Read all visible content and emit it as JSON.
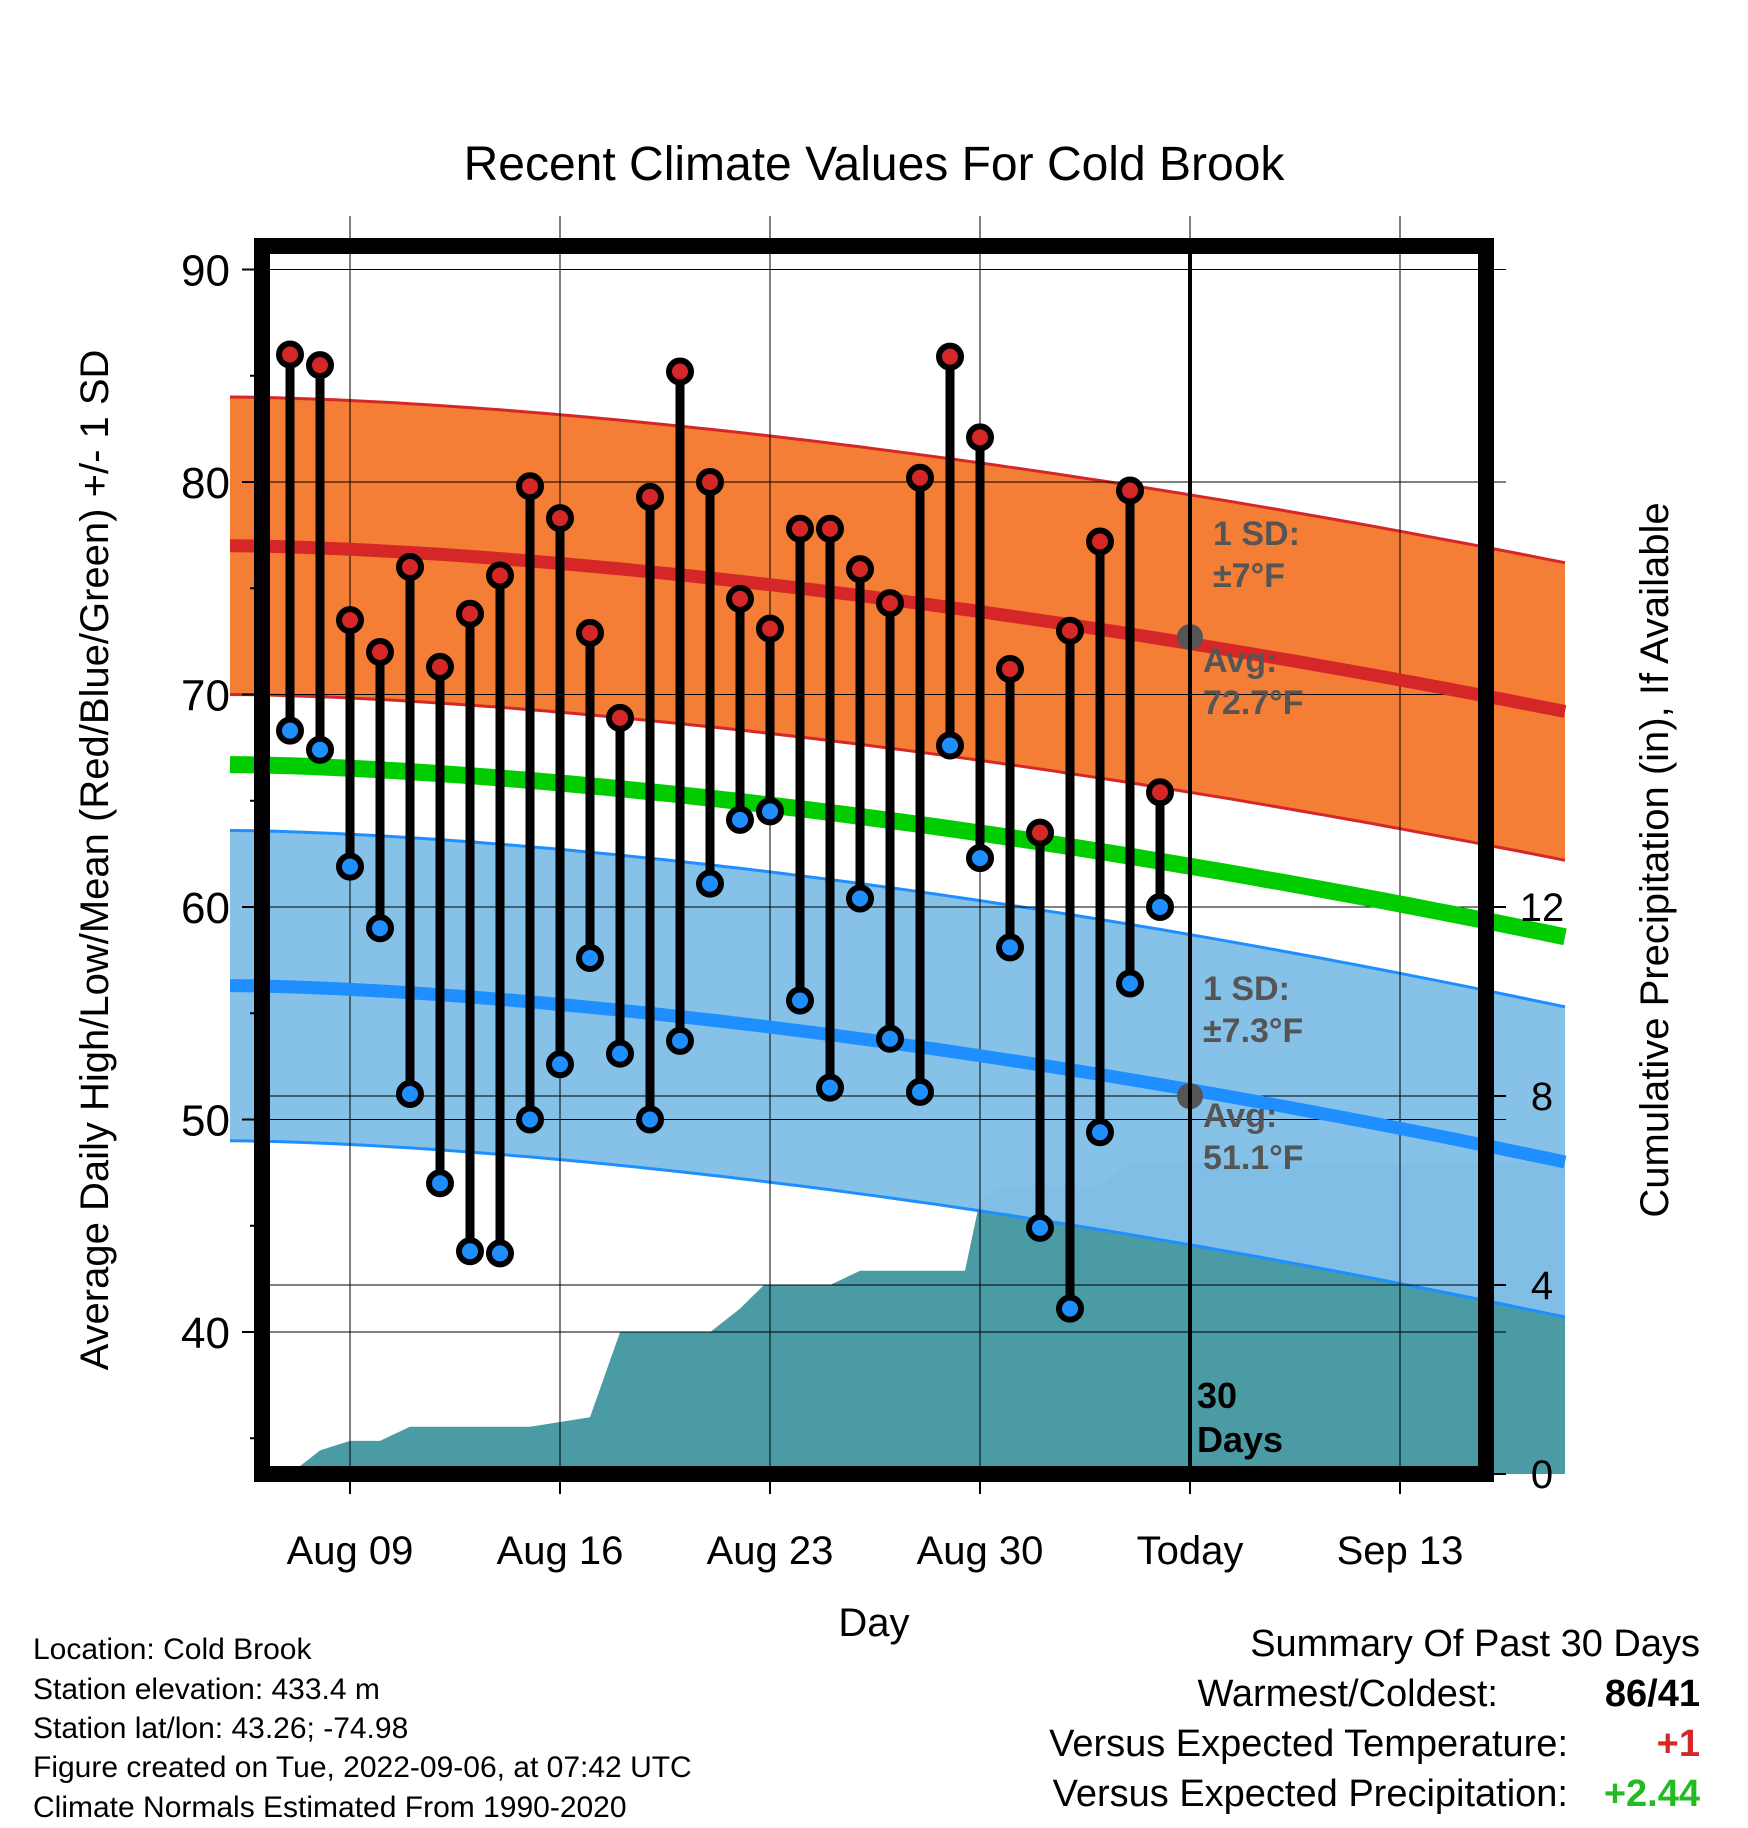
{
  "chart_data": {
    "type": "line",
    "title": "Recent Climate Values For Cold Brook",
    "xlabel": "Day",
    "ylabel": "Average Daily High/Low/Mean (Red/Blue/Green) +/- 1 SD",
    "y2label": "Cumulative Precipitation (in), If Available",
    "ylim": [
      33.1,
      91.5
    ],
    "y2lim": [
      0,
      18.8
    ],
    "yticks": [
      "40",
      "50",
      "60",
      "70",
      "80",
      "90"
    ],
    "y2ticks": [
      "0",
      "4",
      "8",
      "12"
    ],
    "xlim": [
      -4.0,
      40.5
    ],
    "xticks": [
      {
        "pos": 0,
        "label": "Aug 09"
      },
      {
        "pos": 7,
        "label": "Aug 16"
      },
      {
        "pos": 14,
        "label": "Aug 23"
      },
      {
        "pos": 21,
        "label": "Aug 30"
      },
      {
        "pos": 28,
        "label": "Today"
      },
      {
        "pos": 35,
        "label": "Sep 13"
      }
    ],
    "grid": true,
    "days": [
      "Aug 07",
      "Aug 08",
      "Aug 09",
      "Aug 10",
      "Aug 11",
      "Aug 12",
      "Aug 13",
      "Aug 14",
      "Aug 15",
      "Aug 16",
      "Aug 17",
      "Aug 18",
      "Aug 19",
      "Aug 20",
      "Aug 21",
      "Aug 22",
      "Aug 23",
      "Aug 24",
      "Aug 25",
      "Aug 26",
      "Aug 27",
      "Aug 28",
      "Aug 29",
      "Aug 30",
      "Aug 31",
      "Sep 01",
      "Sep 02",
      "Sep 03",
      "Sep 04",
      "Sep 05"
    ],
    "series": [
      {
        "name": "High",
        "color": "#d62728",
        "values": [
          86.0,
          85.5,
          73.5,
          72.0,
          76.0,
          71.3,
          73.8,
          75.6,
          79.8,
          78.3,
          72.9,
          68.9,
          79.3,
          85.2,
          80.0,
          74.5,
          73.1,
          77.8,
          77.8,
          75.9,
          74.3,
          80.2,
          85.9,
          82.1,
          71.2,
          63.5,
          73.0,
          77.2,
          79.6,
          65.4
        ]
      },
      {
        "name": "Low",
        "color": "#1f8fff",
        "values": [
          68.3,
          67.4,
          61.9,
          59.0,
          51.2,
          47.0,
          43.8,
          43.7,
          50.0,
          52.6,
          57.6,
          53.1,
          50.0,
          53.7,
          61.1,
          64.1,
          64.5,
          55.6,
          51.5,
          60.4,
          53.8,
          51.3,
          67.6,
          62.3,
          58.1,
          44.9,
          41.1,
          49.4,
          56.4,
          60.0
        ]
      },
      {
        "name": "Normal High",
        "color": "#d62728",
        "width": 13,
        "start": 77.0,
        "today": 72.7,
        "end": 69.2
      },
      {
        "name": "Normal High +/- 1 SD",
        "color": "#f47a2e",
        "sd": 7
      },
      {
        "name": "Normal Low",
        "color": "#1f8fff",
        "width": 13,
        "start": 56.3,
        "today": 51.1,
        "end": 48.0
      },
      {
        "name": "Normal Low +/- 1 SD",
        "color": "#82bfe7",
        "sd": 7.3
      },
      {
        "name": "Normal Mean",
        "color": "#00cc00",
        "width": 17,
        "start": 66.7,
        "end": 58.6
      }
    ],
    "precip": {
      "color": "#4a9ba3",
      "x": [
        -4.0,
        -2.0,
        -1.0,
        0,
        1.0,
        2.0,
        6.0,
        7.0,
        8.0,
        9.0,
        11.0,
        12.0,
        13.0,
        13.8,
        14.8,
        16.0,
        17.0,
        18.0,
        19.0,
        19.5,
        20.5,
        21.0,
        21.8,
        23.0,
        25.0,
        26.0,
        28.0,
        40.5
      ],
      "values": [
        0,
        0,
        0.5,
        0.7,
        0.7,
        1.0,
        1.0,
        1.1,
        1.2,
        3.0,
        3.0,
        3.0,
        3.5,
        4.0,
        4.0,
        4.0,
        4.3,
        4.3,
        4.3,
        4.3,
        4.3,
        5.8,
        6.1,
        6.1,
        6.1,
        6.6,
        6.6,
        6.6
      ]
    },
    "annotations": {
      "high_sd_label_1": "1 SD:",
      "high_sd_label_2": "±7°F",
      "high_avg_label_1": "Avg:",
      "high_avg_label_2": "72.7°F",
      "low_sd_label_1": "1 SD:",
      "low_sd_label_2": "±7.3°F",
      "low_avg_label_1": "Avg:",
      "low_avg_label_2": "51.1°F",
      "period_label_1": "30",
      "period_label_2": "Days"
    }
  },
  "footer": {
    "location": "Location: Cold Brook",
    "elevation": "Station elevation: 433.4 m",
    "latlon": "Station lat/lon: 43.26; -74.98",
    "created": "Figure created on Tue, 2022-09-06, at 07:42 UTC",
    "normals": "Climate Normals Estimated From 1990-2020"
  },
  "summary": {
    "heading": "Summary Of Past 30 Days",
    "warmest_coldest_label": "Warmest/Coldest:",
    "warmest_coldest_value": "86/41",
    "vs_temp_label": "Versus Expected Temperature:",
    "vs_temp_value": "+1",
    "vs_temp_color": "#d62728",
    "vs_precip_label": "Versus Expected Precipitation:",
    "vs_precip_value": "+2.44",
    "vs_precip_color": "#22bb22"
  }
}
